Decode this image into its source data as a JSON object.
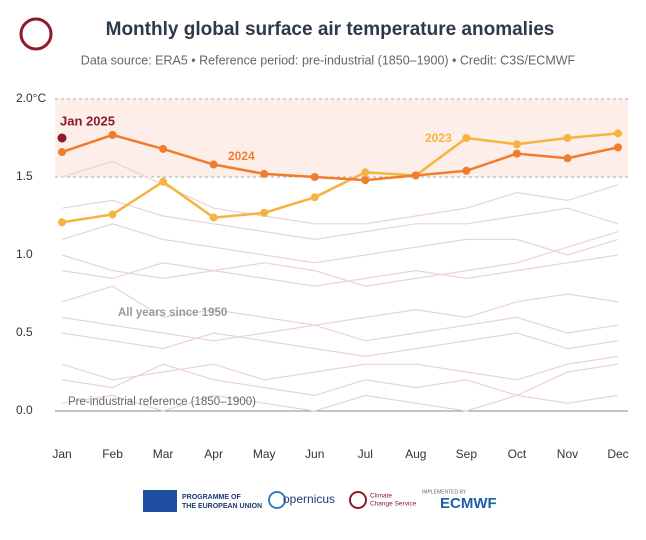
{
  "chart_data": {
    "type": "line",
    "title": "Monthly global surface air temperature anomalies",
    "subtitle": "Data source: ERA5 • Reference period: pre-industrial (1850–1900) • Credit: C3S/ECMWF",
    "categories": [
      "Jan",
      "Feb",
      "Mar",
      "Apr",
      "May",
      "Jun",
      "Jul",
      "Aug",
      "Sep",
      "Oct",
      "Nov",
      "Dec"
    ],
    "ylim": [
      0,
      2
    ],
    "yticks": [
      {
        "value": 0,
        "label": "0.0"
      },
      0.5,
      {
        "value": 1,
        "label": "1.0"
      },
      1.5,
      {
        "value": 2,
        "label": "2.0°C"
      }
    ],
    "series": [
      {
        "name": "2023",
        "color": "#f5b342",
        "values": [
          1.21,
          1.26,
          1.47,
          1.24,
          1.27,
          1.37,
          1.53,
          1.51,
          1.75,
          1.71,
          1.75,
          1.78
        ]
      },
      {
        "name": "2024",
        "color": "#ef7d2d",
        "values": [
          1.66,
          1.77,
          1.68,
          1.58,
          1.52,
          1.5,
          1.48,
          1.51,
          1.54,
          1.65,
          1.62,
          1.69
        ]
      }
    ],
    "highlight": {
      "label": "Jan 2025",
      "value": 1.75,
      "color": "#8b1a2b"
    },
    "background_color": "#e9d5d2",
    "background_label": "All years since 1950",
    "background_series": [
      {
        "values": [
          0.05,
          0.1,
          0.0,
          0.1,
          0.05,
          0.0,
          0.1,
          0.05,
          0.0,
          0.1,
          0.05,
          0.1
        ]
      },
      {
        "values": [
          0.3,
          0.2,
          0.25,
          0.3,
          0.2,
          0.25,
          0.3,
          0.3,
          0.25,
          0.2,
          0.3,
          0.35
        ]
      },
      {
        "values": [
          0.5,
          0.45,
          0.4,
          0.5,
          0.45,
          0.4,
          0.35,
          0.4,
          0.45,
          0.5,
          0.4,
          0.45
        ]
      },
      {
        "values": [
          0.7,
          0.8,
          0.6,
          0.65,
          0.6,
          0.55,
          0.6,
          0.65,
          0.6,
          0.7,
          0.75,
          0.7
        ]
      },
      {
        "values": [
          0.9,
          0.85,
          0.95,
          0.9,
          0.85,
          0.8,
          0.85,
          0.9,
          0.85,
          0.9,
          0.95,
          1.0
        ]
      },
      {
        "values": [
          1.1,
          1.2,
          1.1,
          1.05,
          1.0,
          0.95,
          1.0,
          1.05,
          1.1,
          1.1,
          1.0,
          1.1
        ]
      },
      {
        "values": [
          1.3,
          1.35,
          1.25,
          1.2,
          1.15,
          1.1,
          1.15,
          1.2,
          1.2,
          1.25,
          1.3,
          1.2
        ]
      },
      {
        "values": [
          0.2,
          0.15,
          0.3,
          0.2,
          0.15,
          0.1,
          0.2,
          0.15,
          0.2,
          0.1,
          0.25,
          0.3
        ]
      },
      {
        "values": [
          0.6,
          0.55,
          0.5,
          0.45,
          0.5,
          0.55,
          0.45,
          0.5,
          0.55,
          0.6,
          0.5,
          0.55
        ]
      },
      {
        "values": [
          1.0,
          0.9,
          0.85,
          0.9,
          0.95,
          0.9,
          0.8,
          0.85,
          0.9,
          0.95,
          1.05,
          1.15
        ]
      },
      {
        "values": [
          1.5,
          1.6,
          1.45,
          1.3,
          1.25,
          1.2,
          1.2,
          1.25,
          1.3,
          1.4,
          1.35,
          1.45
        ]
      }
    ],
    "band": [
      1.5,
      2
    ],
    "reference_label": "Pre-industrial reference (1850–1900)"
  },
  "footer": {
    "eu": [
      "PROGRAMME OF",
      "THE EUROPEAN UNION"
    ],
    "copernicus": "opernicus",
    "c3s": [
      "Climate",
      "Change Service"
    ],
    "implemented": "IMPLEMENTED BY",
    "ecmwf": "ECMWF"
  }
}
